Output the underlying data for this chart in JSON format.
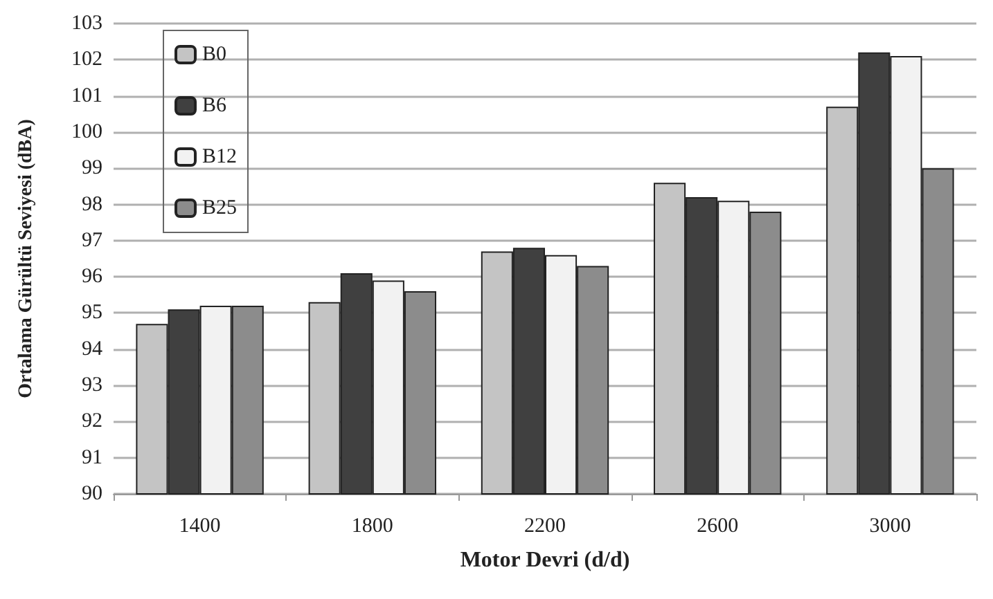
{
  "chart_data": {
    "type": "bar",
    "xlabel": "Motor Devri (d/d)",
    "ylabel": "Ortalama Gürültü Seviyesi (dBA)",
    "categories": [
      "1400",
      "1800",
      "2200",
      "2600",
      "3000"
    ],
    "series": [
      {
        "name": "B0",
        "color": "#c4c4c4",
        "values": [
          94.7,
          95.3,
          96.7,
          98.6,
          100.7
        ]
      },
      {
        "name": "B6",
        "color": "#404040",
        "values": [
          95.1,
          96.1,
          96.8,
          98.2,
          102.2
        ]
      },
      {
        "name": "B12",
        "color": "#f2f2f2",
        "values": [
          95.2,
          95.9,
          96.6,
          98.1,
          102.1
        ]
      },
      {
        "name": "B25",
        "color": "#8c8c8c",
        "values": [
          95.2,
          95.6,
          96.3,
          97.8,
          99.0
        ]
      }
    ],
    "ylim": [
      90,
      103
    ],
    "yticks": [
      90,
      91,
      92,
      93,
      94,
      95,
      96,
      97,
      98,
      99,
      100,
      101,
      102,
      103
    ],
    "grid": "y",
    "legend": "top left"
  }
}
